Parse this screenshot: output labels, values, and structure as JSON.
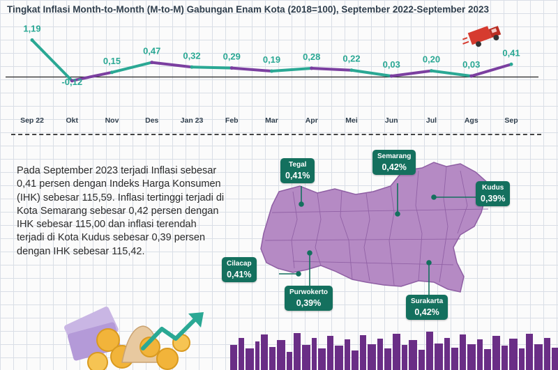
{
  "title": "Tingkat Inflasi Month-to-Month (M-to-M) Gabungan Enam Kota (2018=100), September 2022-September 2023",
  "chart_data": {
    "type": "line",
    "categories": [
      "Sep 22",
      "Okt",
      "Nov",
      "Des",
      "Jan 23",
      "Feb",
      "Mar",
      "Apr",
      "Mei",
      "Jun",
      "Jul",
      "Ags",
      "Sep"
    ],
    "values": [
      1.19,
      -0.12,
      0.15,
      0.47,
      0.32,
      0.29,
      0.19,
      0.28,
      0.22,
      0.03,
      0.2,
      0.03,
      0.41
    ],
    "data_labels": [
      "1,19",
      "-0,12",
      "0,15",
      "0,47",
      "0,32",
      "0,29",
      "0,19",
      "0,28",
      "0,22",
      "0,03",
      "0,20",
      "0,03",
      "0,41"
    ],
    "segment_colors": [
      "#2aa894",
      "#7b3fa0",
      "#2aa894",
      "#7b3fa0",
      "#2aa894",
      "#7b3fa0",
      "#2aa894",
      "#7b3fa0",
      "#2aa894",
      "#7b3fa0",
      "#2aa894",
      "#7b3fa0"
    ],
    "xlabel": "",
    "ylabel": "",
    "ylim": [
      -0.2,
      1.3
    ],
    "zero_line": true,
    "grid": true
  },
  "paragraph": "Pada September 2023 terjadi Inflasi sebesar 0,41 persen dengan Indeks Harga Konsumen (IHK) sebesar 115,59. Inflasi tertinggi terjadi di Kota Semarang sebesar 0,42 persen dengan IHK sebesar 115,00 dan inflasi terendah terjadi di Kota Kudus sebesar 0,39 persen dengan IHK sebesar 115,42.",
  "cities": [
    {
      "name": "Tegal",
      "value": "0,41%"
    },
    {
      "name": "Semarang",
      "value": "0,42%"
    },
    {
      "name": "Kudus",
      "value": "0,39%"
    },
    {
      "name": "Cilacap",
      "value": "0,41%"
    },
    {
      "name": "Purwokerto",
      "value": "0,39%"
    },
    {
      "name": "Surakarta",
      "value": "0,42%"
    }
  ],
  "colors": {
    "teal": "#2aa894",
    "purple": "#7b3fa0",
    "callout": "#14705e",
    "map": "#b58ac4",
    "truck": "#d63b2f"
  }
}
